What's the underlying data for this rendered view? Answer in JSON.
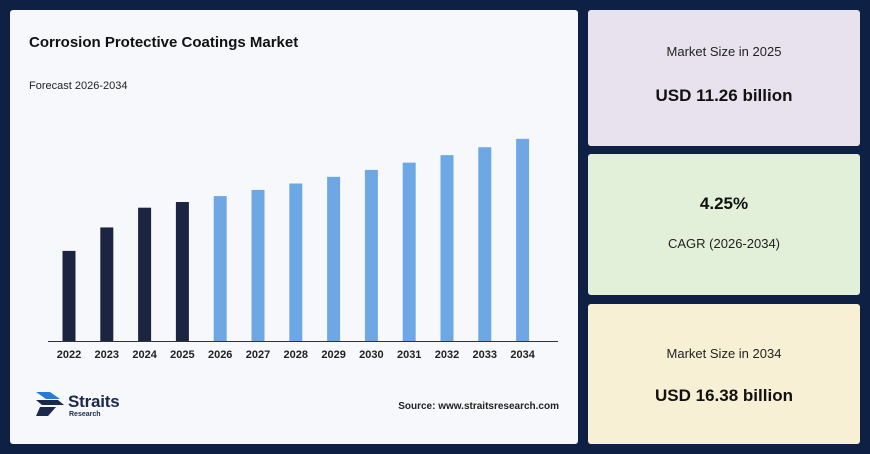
{
  "chart_data": {
    "type": "bar",
    "title": "Corrosion Protective Coatings Market",
    "subtitle": "Forecast 2026-2034",
    "categories": [
      "2022",
      "2023",
      "2024",
      "2025",
      "2026",
      "2027",
      "2028",
      "2029",
      "2030",
      "2031",
      "2032",
      "2033",
      "2034"
    ],
    "values": [
      7.3,
      9.2,
      10.8,
      11.26,
      11.74,
      12.24,
      12.76,
      13.3,
      13.86,
      14.45,
      15.06,
      15.7,
      16.38
    ],
    "historical_color": "#1b2440",
    "forecast_color": "#6ea8e4",
    "forecast_start_index": 4,
    "ylim": [
      0,
      17.5
    ],
    "grid": false,
    "legend": "none"
  },
  "source": "Source: www.straitsresearch.com",
  "logo": {
    "name": "Straits",
    "sub": "Research",
    "icon": "straits-logo-icon"
  },
  "cards": [
    {
      "label": "Market Size in 2025",
      "value": "USD 11.26 billion"
    },
    {
      "label": "CAGR (2026-2034)",
      "value": "4.25%"
    },
    {
      "label": "Market Size in 2034",
      "value": "USD 16.38 billion"
    }
  ]
}
